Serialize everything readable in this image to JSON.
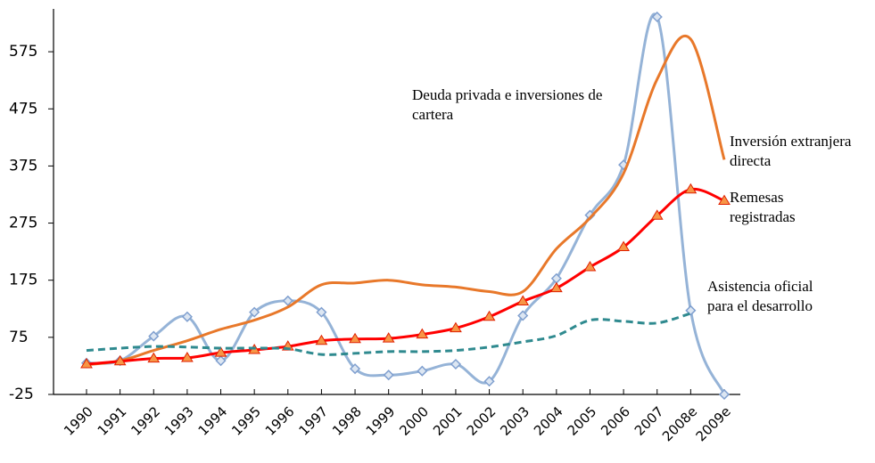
{
  "chart_data": {
    "type": "line",
    "categories": [
      "1990",
      "1991",
      "1992",
      "1993",
      "1994",
      "1995",
      "1996",
      "1997",
      "1998",
      "1999",
      "2000",
      "2001",
      "2002",
      "2003",
      "2004",
      "2005",
      "2006",
      "2007",
      "2008e",
      "2009e"
    ],
    "ylim": [
      -25,
      650
    ],
    "yticks": [
      -25,
      75,
      175,
      275,
      375,
      475,
      575
    ],
    "series": [
      {
        "name": "Deuda privada e inversiones de cartera",
        "color": "#95b3d7",
        "marker": "diamond",
        "dashed": false,
        "values": [
          30,
          34,
          77,
          111,
          34,
          119,
          139,
          119,
          20,
          9,
          16,
          28,
          -2,
          113,
          178,
          289,
          377,
          636,
          122,
          -25
        ]
      },
      {
        "name": "Inversión extranjera directa",
        "color": "#e8782a",
        "marker": "none",
        "dashed": false,
        "values": [
          27,
          34,
          52,
          69,
          89,
          105,
          128,
          167,
          170,
          175,
          167,
          163,
          155,
          155,
          230,
          284,
          362,
          527,
          597,
          386
        ]
      },
      {
        "name": "Remesas registradas",
        "color": "#ff0000",
        "marker": "triangle",
        "dashed": false,
        "values": [
          28,
          33,
          38,
          39,
          48,
          53,
          59,
          69,
          72,
          73,
          80,
          91,
          111,
          138,
          161,
          198,
          233,
          288,
          334,
          314
        ]
      },
      {
        "name": "Asistencia oficial para el desarrollo",
        "color": "#2f8a8f",
        "marker": "none",
        "dashed": true,
        "values": [
          52,
          56,
          59,
          58,
          56,
          56,
          55,
          45,
          47,
          50,
          50,
          52,
          58,
          67,
          78,
          105,
          103,
          100,
          117,
          null
        ]
      }
    ]
  }
}
